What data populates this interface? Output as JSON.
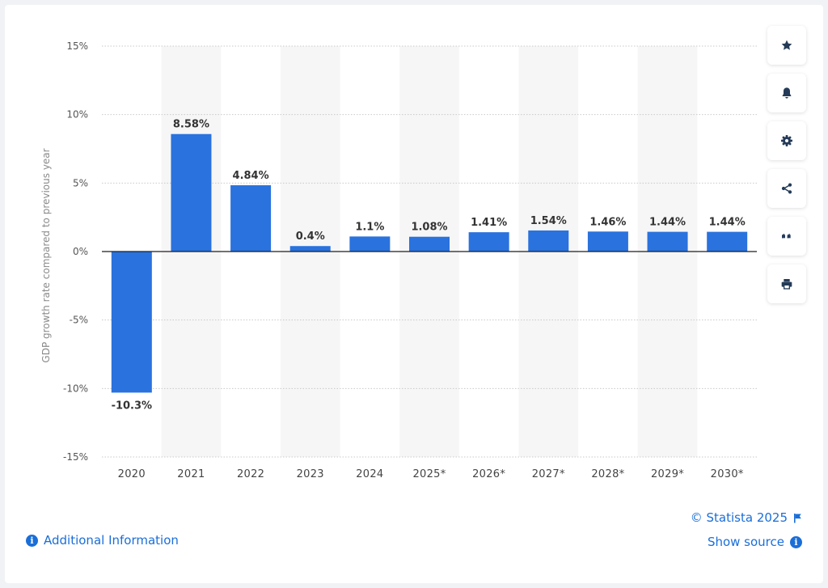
{
  "chart_data": {
    "type": "bar",
    "categories": [
      "2020",
      "2021",
      "2022",
      "2023",
      "2024",
      "2025*",
      "2026*",
      "2027*",
      "2028*",
      "2029*",
      "2030*"
    ],
    "values": [
      -10.3,
      8.58,
      4.84,
      0.4,
      1.1,
      1.08,
      1.41,
      1.54,
      1.46,
      1.44,
      1.44
    ],
    "value_labels": [
      "-10.3%",
      "8.58%",
      "4.84%",
      "0.4%",
      "1.1%",
      "1.08%",
      "1.41%",
      "1.54%",
      "1.46%",
      "1.44%",
      "1.44%"
    ],
    "ylabel": "GDP growth rate compared to previous year",
    "ylim": [
      -15,
      15
    ],
    "yticks": [
      15,
      10,
      5,
      0,
      -5,
      -10,
      -15
    ],
    "ytick_labels": [
      "15%",
      "10%",
      "5%",
      "0%",
      "-5%",
      "-10%",
      "-15%"
    ],
    "grid": true,
    "bar_color": "#2a72de",
    "band_color": "#f6f6f6",
    "legend": "none"
  },
  "toolbar": {
    "buttons": [
      {
        "name": "favorite-button",
        "icon": "star-icon"
      },
      {
        "name": "notification-button",
        "icon": "bell-icon"
      },
      {
        "name": "settings-button",
        "icon": "gear-icon"
      },
      {
        "name": "share-button",
        "icon": "share-icon"
      },
      {
        "name": "cite-button",
        "icon": "quote-icon"
      },
      {
        "name": "print-button",
        "icon": "printer-icon"
      }
    ]
  },
  "footer": {
    "copyright": "© Statista 2025",
    "show_source": "Show source",
    "additional_info": "Additional Information"
  }
}
